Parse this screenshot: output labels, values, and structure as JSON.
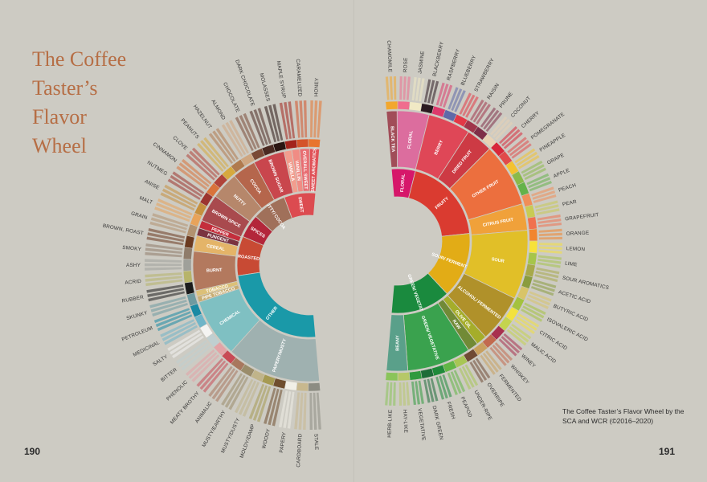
{
  "title": "The Coffee Taster’s Flavor Wheel",
  "page_left": "190",
  "page_right": "191",
  "caption": "The Coffee Taster’s Flavor Wheel by the SCA and WCR (©2016–2020)",
  "left_wheel": {
    "inner": [
      {
        "label": "SWEET",
        "color": "#dc4b50",
        "span": 24
      },
      {
        "label": "NUTTY/ COCOA",
        "color": "#a0705a",
        "span": 26
      },
      {
        "label": "SPICES",
        "color": "#b3263a",
        "span": 18
      },
      {
        "label": "ROASTED",
        "color": "#c84a34",
        "span": 30
      },
      {
        "label": "OTHER",
        "color": "#1a99a8",
        "span": 82
      }
    ],
    "middle": [
      {
        "label": "SWEET AROMATICS",
        "color": "#e05157",
        "span": 5
      },
      {
        "label": "OVERALL SWEET",
        "color": "#e86d72",
        "span": 5
      },
      {
        "label": "VANILLIN",
        "color": "#f08c84",
        "span": 4
      },
      {
        "label": "VANILLA",
        "color": "#f29d8e",
        "span": 4
      },
      {
        "label": "BROWN SUGAR",
        "color": "#c9464d",
        "span": 16
      },
      {
        "label": "COCOA",
        "color": "#b5664c",
        "span": 12
      },
      {
        "label": "NUTTY",
        "color": "#b6876b",
        "span": 14
      },
      {
        "label": "BROWN SPICE",
        "color": "#a94a4e",
        "span": 14
      },
      {
        "label": "PEPPER",
        "color": "#c42e3c",
        "span": 4
      },
      {
        "label": "PUNGENT",
        "color": "#7a3340",
        "span": 4
      },
      {
        "label": "CEREAL",
        "color": "#e4b468",
        "span": 8
      },
      {
        "label": "BURNT",
        "color": "#b3795e",
        "span": 20
      },
      {
        "label": "TOBACCO",
        "color": "#dcc078",
        "span": 3
      },
      {
        "label": "PIPE TOBACCO",
        "color": "#c8ad72",
        "span": 3
      },
      {
        "label": "CHEMICAL",
        "color": "#7fc0c2",
        "span": 30
      },
      {
        "label": "PAPERY/MUSTY",
        "color": "#9fb1b0",
        "span": 48
      }
    ],
    "outer": [
      {
        "label": "HONEY",
        "color": "#e8742e"
      },
      {
        "label": "CARAMELIZED",
        "color": "#d4542a"
      },
      {
        "label": "MAPLE SYRUP",
        "color": "#a3241c"
      },
      {
        "label": "MOLASSES",
        "color": "#2a1612"
      },
      {
        "label": "DARK CHOCOLATE",
        "color": "#4a2a22"
      },
      {
        "label": "CHOCOLATE",
        "color": "#7a4a36"
      },
      {
        "label": "ALMOND",
        "color": "#cfa680"
      },
      {
        "label": "HAZELNUT",
        "color": "#b07a4e"
      },
      {
        "label": "PEANUTS",
        "color": "#d6a93e"
      },
      {
        "label": "CLOVE",
        "color": "#b0443a"
      },
      {
        "label": "CINNAMON",
        "color": "#d9733a"
      },
      {
        "label": "NUTMEG",
        "color": "#9c3530"
      },
      {
        "label": "ANISE",
        "color": "#c6903e"
      },
      {
        "label": "MALT",
        "color": "#e8a35a"
      },
      {
        "label": "GRAIN",
        "color": "#b29270"
      },
      {
        "label": "BROWN, ROAST",
        "color": "#6b3a20"
      },
      {
        "label": "SMOKY",
        "color": "#8f7c6a"
      },
      {
        "label": "ASHY",
        "color": "#9fa09a"
      },
      {
        "label": "ACRID",
        "color": "#b7b46a"
      },
      {
        "label": "RUBBER",
        "color": "#1b1b1b"
      },
      {
        "label": "SKUNKY",
        "color": "#6e9aa0"
      },
      {
        "label": "PETROLEUM",
        "color": "#1a8aa4"
      },
      {
        "label": "MEDICINAL",
        "color": "#6fb5c8"
      },
      {
        "label": "SALTY",
        "color": "#f4f4f2"
      },
      {
        "label": "BITTER",
        "color": "#c0cfd0"
      },
      {
        "label": "PHENOLIC",
        "color": "#e3a3a6"
      },
      {
        "label": "MEATY BROTHY",
        "color": "#c84a55"
      },
      {
        "label": "ANIMALIC",
        "color": "#a8775e"
      },
      {
        "label": "MUSTY/EARTHY",
        "color": "#9a8c6a"
      },
      {
        "label": "MUSTY/DUSTY",
        "color": "#c0b48a"
      },
      {
        "label": "MOLDY/DAMP",
        "color": "#a69a52"
      },
      {
        "label": "WOODY",
        "color": "#6f4e2e"
      },
      {
        "label": "PAPERY",
        "color": "#f1efe6"
      },
      {
        "label": "CARDBOARD",
        "color": "#c8b88e"
      },
      {
        "label": "STALE",
        "color": "#8c8c82"
      }
    ]
  },
  "right_wheel": {
    "inner": [
      {
        "label": "FLORAL",
        "color": "#d6176a",
        "span": 16
      },
      {
        "label": "FRUITY",
        "color": "#da3b30",
        "span": 58
      },
      {
        "label": "SOUR/ FERMENTED",
        "color": "#e2ac16",
        "span": 44
      },
      {
        "label": "GREEN/ VEGETATIVE",
        "color": "#1a8a3e",
        "span": 40
      }
    ],
    "middle": [
      {
        "label": "BLACK TEA",
        "color": "#a14d58",
        "span": 4
      },
      {
        "label": "FLORAL",
        "color": "#dc6d9e",
        "span": 12
      },
      {
        "label": "BERRY",
        "color": "#df4757",
        "span": 16
      },
      {
        "label": "DRIED FRUIT",
        "color": "#cd3a44",
        "span": 10
      },
      {
        "label": "OTHER FRUIT",
        "color": "#ec6f3e",
        "span": 24
      },
      {
        "label": "CITRUS FRUIT",
        "color": "#f0a13a",
        "span": 10
      },
      {
        "label": "SOUR",
        "color": "#e1bf28",
        "span": 26
      },
      {
        "label": "ALCOHOL/ FERMENTED",
        "color": "#b0912a",
        "span": 18
      },
      {
        "label": "OLIVE OIL",
        "color": "#a5ad2a",
        "span": 4
      },
      {
        "label": "RAW",
        "color": "#718a36",
        "span": 4
      },
      {
        "label": "GREEN/ VEGETATIVE",
        "color": "#3aa24e",
        "span": 24
      },
      {
        "label": "BEANY",
        "color": "#5aa08a",
        "span": 8
      }
    ],
    "outer": [
      {
        "label": "CHAMOMILE",
        "color": "#f2a72e"
      },
      {
        "label": "ROSE",
        "color": "#ef6e8e"
      },
      {
        "label": "JASMINE",
        "color": "#f1e9c5"
      },
      {
        "label": "BLACKBERRY",
        "color": "#2b1a20"
      },
      {
        "label": "RASPBERRY",
        "color": "#dd3a6c"
      },
      {
        "label": "BLUEBERRY",
        "color": "#5f6aa8"
      },
      {
        "label": "STRAWBERRY",
        "color": "#e33846"
      },
      {
        "label": "RAISIN",
        "color": "#a0354a"
      },
      {
        "label": "PRUNE",
        "color": "#7f2f48"
      },
      {
        "label": "COCONUT",
        "color": "#e8d2b4"
      },
      {
        "label": "CHERRY",
        "color": "#d8283a"
      },
      {
        "label": "POMEGRANATE",
        "color": "#e14a4a"
      },
      {
        "label": "PINEAPPLE",
        "color": "#f3c230"
      },
      {
        "label": "GRAPE",
        "color": "#8aba4a"
      },
      {
        "label": "APPLE",
        "color": "#64b24a"
      },
      {
        "label": "PEACH",
        "color": "#f08e58"
      },
      {
        "label": "PEAR",
        "color": "#c8cb54"
      },
      {
        "label": "GRAPEFRUIT",
        "color": "#f0714e"
      },
      {
        "label": "ORANGE",
        "color": "#f1852e"
      },
      {
        "label": "LEMON",
        "color": "#f7e23a"
      },
      {
        "label": "LIME",
        "color": "#a6c54a"
      },
      {
        "label": "SOUR AROMATICS",
        "color": "#a7a94a"
      },
      {
        "label": "ACETIC ACID",
        "color": "#8a9c3e"
      },
      {
        "label": "BUTYRIC ACID",
        "color": "#d8c468"
      },
      {
        "label": "ISOVALERIC ACID",
        "color": "#a4c23e"
      },
      {
        "label": "CITRIC ACID",
        "color": "#f3e23e"
      },
      {
        "label": "MALIC ACID",
        "color": "#c4d44e"
      },
      {
        "label": "WINEY",
        "color": "#a8304e"
      },
      {
        "label": "WHISKEY",
        "color": "#c26a4e"
      },
      {
        "label": "FERMENTED",
        "color": "#c9a05e"
      },
      {
        "label": "OVERRIPE",
        "color": "#704a34"
      },
      {
        "label": "UNDER-RIPE",
        "color": "#a8c654"
      },
      {
        "label": "PEAPOD",
        "color": "#62b646"
      },
      {
        "label": "FRESH",
        "color": "#1f8a3a"
      },
      {
        "label": "DARK GREEN",
        "color": "#1e6c38"
      },
      {
        "label": "VEGETATIVE",
        "color": "#2f9a3e"
      },
      {
        "label": "HAY-LIKE",
        "color": "#b6c868"
      },
      {
        "label": "HERB-LIKE",
        "color": "#8ac45a"
      }
    ]
  }
}
